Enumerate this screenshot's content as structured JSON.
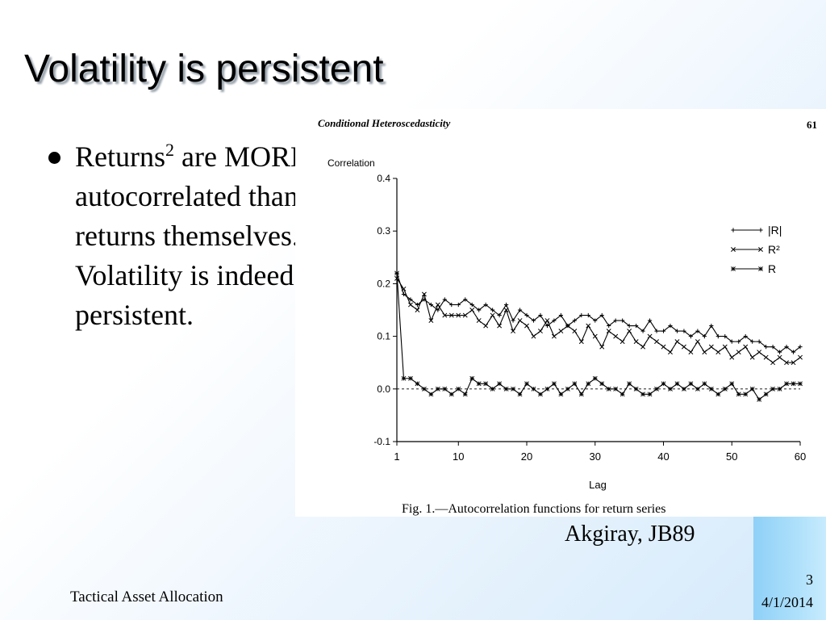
{
  "slide": {
    "title": "Volatility is persistent",
    "bullet_main": "Returns",
    "bullet_sup": "2",
    "bullet_rest": " are MORE autocorrelated than returns themselves. Volatility is indeed persistent.",
    "citation": "Akgiray, JB89",
    "footer_left": "Tactical Asset Allocation",
    "page_number": "3",
    "date": "4/1/2014"
  },
  "figure": {
    "header_left": "Conditional Heteroscedasticity",
    "page_number": "61",
    "caption": "Fig. 1.—Autocorrelation functions for return series"
  },
  "chart_data": {
    "type": "line",
    "title": "",
    "xlabel": "Lag",
    "ylabel": "Correlation",
    "xlim": [
      1,
      60
    ],
    "ylim": [
      -0.1,
      0.4
    ],
    "x_ticks": [
      "1",
      "10",
      "20",
      "30",
      "40",
      "50",
      "60"
    ],
    "y_ticks": [
      "-0.1",
      "0.0",
      "0.1",
      "0.2",
      "0.3",
      "0.4"
    ],
    "legend_position": "top-right",
    "reference_line": {
      "y": 0.0,
      "style": "dashed"
    },
    "series": [
      {
        "name": "|R|",
        "marker": "+",
        "values": [
          0.22,
          0.18,
          0.17,
          0.16,
          0.17,
          0.16,
          0.15,
          0.17,
          0.16,
          0.16,
          0.17,
          0.16,
          0.15,
          0.16,
          0.15,
          0.14,
          0.16,
          0.13,
          0.15,
          0.14,
          0.13,
          0.14,
          0.12,
          0.13,
          0.14,
          0.12,
          0.13,
          0.14,
          0.14,
          0.13,
          0.14,
          0.12,
          0.13,
          0.13,
          0.12,
          0.12,
          0.11,
          0.13,
          0.11,
          0.11,
          0.12,
          0.11,
          0.11,
          0.1,
          0.11,
          0.1,
          0.12,
          0.1,
          0.1,
          0.09,
          0.09,
          0.1,
          0.09,
          0.09,
          0.08,
          0.08,
          0.07,
          0.08,
          0.07,
          0.08
        ]
      },
      {
        "name": "R²",
        "marker": "x",
        "values": [
          0.21,
          0.19,
          0.16,
          0.15,
          0.18,
          0.13,
          0.16,
          0.14,
          0.14,
          0.14,
          0.14,
          0.15,
          0.13,
          0.12,
          0.14,
          0.12,
          0.15,
          0.11,
          0.13,
          0.12,
          0.1,
          0.11,
          0.13,
          0.1,
          0.11,
          0.12,
          0.11,
          0.09,
          0.12,
          0.1,
          0.08,
          0.11,
          0.1,
          0.09,
          0.11,
          0.09,
          0.08,
          0.1,
          0.09,
          0.08,
          0.07,
          0.09,
          0.08,
          0.07,
          0.09,
          0.07,
          0.08,
          0.07,
          0.08,
          0.06,
          0.07,
          0.08,
          0.06,
          0.07,
          0.06,
          0.05,
          0.06,
          0.05,
          0.05,
          0.06
        ]
      },
      {
        "name": "R",
        "marker": "*",
        "values": [
          0.22,
          0.02,
          0.02,
          0.01,
          0.0,
          -0.01,
          0.0,
          0.0,
          -0.01,
          0.0,
          -0.01,
          0.02,
          0.01,
          0.01,
          0.0,
          0.01,
          0.0,
          0.0,
          -0.01,
          0.01,
          0.0,
          -0.01,
          0.0,
          0.01,
          -0.01,
          0.0,
          0.01,
          -0.01,
          0.01,
          0.02,
          0.01,
          0.0,
          0.0,
          -0.01,
          0.01,
          0.0,
          -0.01,
          -0.01,
          0.0,
          0.01,
          0.0,
          0.01,
          0.0,
          0.01,
          0.0,
          0.01,
          0.0,
          -0.01,
          0.0,
          0.01,
          -0.01,
          -0.01,
          0.0,
          -0.02,
          -0.01,
          0.0,
          0.0,
          0.01,
          0.01,
          0.01
        ]
      }
    ]
  }
}
